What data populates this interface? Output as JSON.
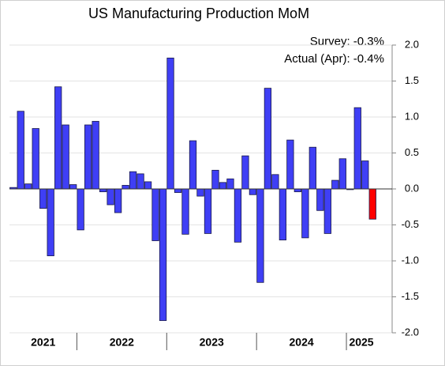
{
  "chart_data": {
    "type": "bar",
    "title": "US Manufacturing Production MoM",
    "annotations": [
      "Survey:  -0.3%",
      "Actual (Apr):  -0.4%"
    ],
    "categories": [
      null,
      null,
      null,
      null,
      null,
      null,
      null,
      null,
      null,
      null,
      null,
      null,
      null,
      null,
      null,
      null,
      null,
      null,
      null,
      null,
      null,
      null,
      null,
      null,
      null,
      null,
      null,
      null,
      null,
      null,
      null,
      null,
      null,
      null,
      null,
      null,
      null,
      null,
      null,
      null,
      null,
      null,
      null,
      null,
      null,
      null,
      null,
      null,
      null
    ],
    "year_labels": [
      {
        "label": "2021",
        "months": 9
      },
      {
        "label": "2022",
        "months": 12
      },
      {
        "label": "2023",
        "months": 12
      },
      {
        "label": "2024",
        "months": 12
      },
      {
        "label": "2025",
        "months": 4
      }
    ],
    "values": [
      0.02,
      1.08,
      0.07,
      0.84,
      -0.27,
      -0.93,
      1.42,
      0.89,
      0.06,
      -0.57,
      0.89,
      0.94,
      -0.04,
      -0.22,
      -0.33,
      0.05,
      0.24,
      0.21,
      0.1,
      -0.72,
      -1.83,
      1.82,
      -0.05,
      -0.63,
      0.67,
      -0.1,
      -0.62,
      0.26,
      0.09,
      0.14,
      -0.74,
      0.46,
      -0.08,
      -1.3,
      1.4,
      0.2,
      -0.71,
      0.68,
      -0.04,
      -0.68,
      0.58,
      -0.3,
      -0.62,
      0.12,
      0.42,
      -0.01,
      1.13,
      0.39,
      -0.42
    ],
    "colors": [
      "#3f3ff5",
      "#3f3ff5",
      "#3f3ff5",
      "#3f3ff5",
      "#3f3ff5",
      "#3f3ff5",
      "#3f3ff5",
      "#3f3ff5",
      "#3f3ff5",
      "#3f3ff5",
      "#3f3ff5",
      "#3f3ff5",
      "#3f3ff5",
      "#3f3ff5",
      "#3f3ff5",
      "#3f3ff5",
      "#3f3ff5",
      "#3f3ff5",
      "#3f3ff5",
      "#3f3ff5",
      "#3f3ff5",
      "#3f3ff5",
      "#3f3ff5",
      "#3f3ff5",
      "#3f3ff5",
      "#3f3ff5",
      "#3f3ff5",
      "#3f3ff5",
      "#3f3ff5",
      "#3f3ff5",
      "#3f3ff5",
      "#3f3ff5",
      "#3f3ff5",
      "#3f3ff5",
      "#3f3ff5",
      "#3f3ff5",
      "#3f3ff5",
      "#3f3ff5",
      "#3f3ff5",
      "#3f3ff5",
      "#3f3ff5",
      "#3f3ff5",
      "#3f3ff5",
      "#3f3ff5",
      "#3f3ff5",
      "#3f3ff5",
      "#3f3ff5",
      "#3f3ff5",
      "#ff0000"
    ],
    "ylim": [
      -2.0,
      2.0
    ],
    "yticks": [
      {
        "value": -2,
        "label": "-2.0"
      },
      {
        "value": -1.5,
        "label": "-1.5"
      },
      {
        "value": -1,
        "label": "-1.0"
      },
      {
        "value": -0.5,
        "label": "-0.5"
      },
      {
        "value": 0,
        "label": "0.0"
      },
      {
        "value": 0.5,
        "label": "0.5"
      },
      {
        "value": 1,
        "label": "1.0"
      },
      {
        "value": 1.5,
        "label": "1.5"
      },
      {
        "value": 2,
        "label": "2.0"
      }
    ],
    "y_axis_side": "right",
    "grid": true
  }
}
